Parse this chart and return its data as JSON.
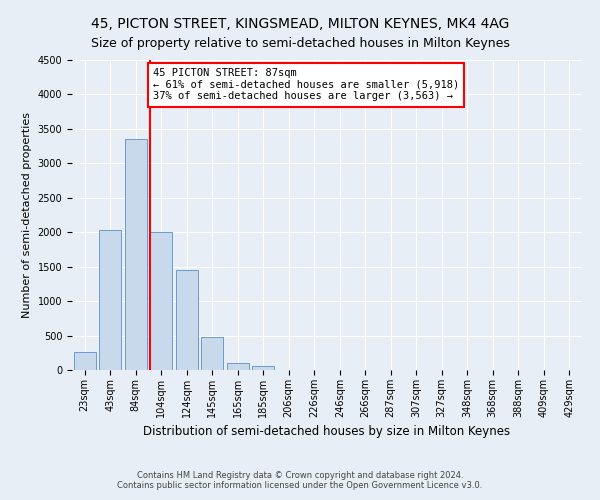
{
  "title": "45, PICTON STREET, KINGSMEAD, MILTON KEYNES, MK4 4AG",
  "subtitle": "Size of property relative to semi-detached houses in Milton Keynes",
  "xlabel": "Distribution of semi-detached houses by size in Milton Keynes",
  "ylabel": "Number of semi-detached properties",
  "footnote1": "Contains HM Land Registry data © Crown copyright and database right 2024.",
  "footnote2": "Contains public sector information licensed under the Open Government Licence v3.0.",
  "bar_labels": [
    "23sqm",
    "43sqm",
    "84sqm",
    "104sqm",
    "124sqm",
    "145sqm",
    "165sqm",
    "185sqm",
    "206sqm",
    "226sqm",
    "246sqm",
    "266sqm",
    "287sqm",
    "307sqm",
    "327sqm",
    "348sqm",
    "368sqm",
    "388sqm",
    "409sqm",
    "429sqm"
  ],
  "bar_values": [
    265,
    2030,
    3360,
    2000,
    1450,
    475,
    100,
    55,
    0,
    0,
    0,
    0,
    0,
    0,
    0,
    0,
    0,
    0,
    0,
    0
  ],
  "bar_color": "#c8d9ec",
  "bar_edge_color": "#5a8fc4",
  "vline_color": "red",
  "vline_x": 3,
  "annotation_text": "45 PICTON STREET: 87sqm\n← 61% of semi-detached houses are smaller (5,918)\n37% of semi-detached houses are larger (3,563) →",
  "annotation_box_color": "white",
  "annotation_box_edge": "red",
  "ylim": [
    0,
    4500
  ],
  "yticks": [
    0,
    500,
    1000,
    1500,
    2000,
    2500,
    3000,
    3500,
    4000,
    4500
  ],
  "bg_color": "#e8eef5",
  "plot_bg_color": "#e8eef5",
  "grid_color": "white",
  "title_fontsize": 10,
  "subtitle_fontsize": 9,
  "xlabel_fontsize": 8.5,
  "ylabel_fontsize": 8,
  "tick_fontsize": 7,
  "annotation_fontsize": 7.5,
  "footnote_fontsize": 6
}
